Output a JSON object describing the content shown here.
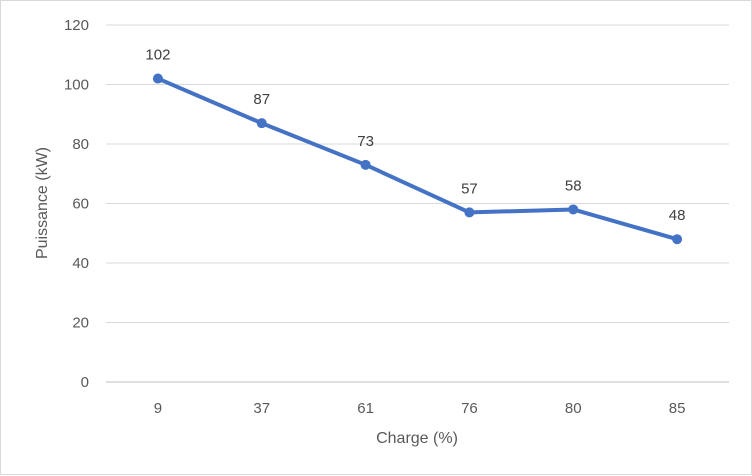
{
  "chart_data": {
    "type": "line",
    "title": "",
    "xlabel": "Charge (%)",
    "ylabel": "Puissance (kW)",
    "categories": [
      "9",
      "37",
      "61",
      "76",
      "80",
      "85"
    ],
    "series": [
      {
        "values": [
          102,
          87,
          73,
          57,
          58,
          48
        ],
        "color": "#4472c4",
        "data_labels": [
          "102",
          "87",
          "73",
          "57",
          "58",
          "48"
        ]
      }
    ],
    "ylim": [
      0,
      120
    ],
    "yticks": [
      "0",
      "20",
      "40",
      "60",
      "80",
      "100",
      "120"
    ],
    "grid": true,
    "legend": "none"
  }
}
